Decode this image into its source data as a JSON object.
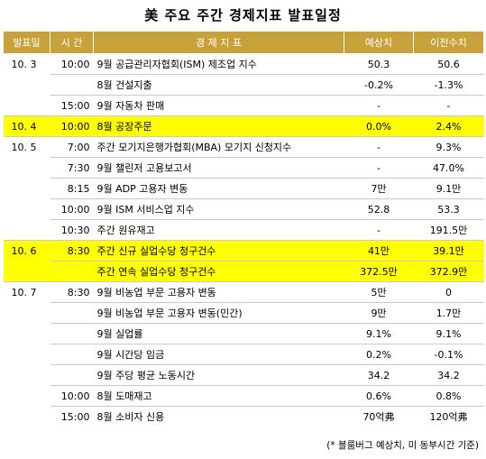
{
  "title": "美 주요 주간 경제지표 발표일정",
  "columns": [
    "발표일",
    "시 간",
    "경  제  지  표",
    "예상치",
    "이전수치"
  ],
  "rows": [
    {
      "date": "10. 3",
      "time": "10:00",
      "indicator": "9월 공급관리자협회(ISM) 제조업 지수",
      "expected": "50.3",
      "previous": "50.6",
      "highlight": false,
      "group_start": true
    },
    {
      "date": "",
      "time": "",
      "indicator": "8월 건설지출",
      "expected": "-0.2%",
      "previous": "-1.3%",
      "highlight": false,
      "group_start": false
    },
    {
      "date": "",
      "time": "15:00",
      "indicator": "9월 자동차 판매",
      "expected": "-",
      "previous": "-",
      "highlight": false,
      "group_start": false
    },
    {
      "date": "10. 4",
      "time": "10:00",
      "indicator": "8월 공장주문",
      "expected": "0.0%",
      "previous": "2.4%",
      "highlight": true,
      "group_start": true
    },
    {
      "date": "10. 5",
      "time": "7:00",
      "indicator": "주간 모기지은행가협회(MBA) 모기지 신청지수",
      "expected": "-",
      "previous": "9.3%",
      "highlight": false,
      "group_start": true
    },
    {
      "date": "",
      "time": "7:30",
      "indicator": "9월 챌린저 고용보고서",
      "expected": "-",
      "previous": "47.0%",
      "highlight": false,
      "group_start": false
    },
    {
      "date": "",
      "time": "8:15",
      "indicator": "9월 ADP 고용자 변동",
      "expected": "7만",
      "previous": "9.1만",
      "highlight": false,
      "group_start": false
    },
    {
      "date": "",
      "time": "10:00",
      "indicator": "9월 ISM 서비스업 지수",
      "expected": "52.8",
      "previous": "53.3",
      "highlight": false,
      "group_start": false
    },
    {
      "date": "",
      "time": "10:30",
      "indicator": "주간 원유재고",
      "expected": "-",
      "previous": "191.5만",
      "highlight": false,
      "group_start": false
    },
    {
      "date": "10. 6",
      "time": "8:30",
      "indicator": "주간 신규 실업수당 청구건수",
      "expected": "41만",
      "previous": "39.1만",
      "highlight": true,
      "group_start": true
    },
    {
      "date": "",
      "time": "",
      "indicator": "주간 연속 실업수당 청구건수",
      "expected": "372.5만",
      "previous": "372.9만",
      "highlight": true,
      "group_start": false
    },
    {
      "date": "10. 7",
      "time": "8:30",
      "indicator": "9월 비농업 부문 고용자 변동",
      "expected": "5만",
      "previous": "0",
      "highlight": false,
      "group_start": true
    },
    {
      "date": "",
      "time": "",
      "indicator": "9월 비농업 부문 고용자 변동(민간)",
      "expected": "9만",
      "previous": "1.7만",
      "highlight": false,
      "group_start": false
    },
    {
      "date": "",
      "time": "",
      "indicator": "9월 실업률",
      "expected": "9.1%",
      "previous": "9.1%",
      "highlight": false,
      "group_start": false
    },
    {
      "date": "",
      "time": "",
      "indicator": "9월 시간당 임금",
      "expected": "0.2%",
      "previous": "-0.1%",
      "highlight": false,
      "group_start": false
    },
    {
      "date": "",
      "time": "",
      "indicator": "9월 주당 평균 노동시간",
      "expected": "34.2",
      "previous": "34.2",
      "highlight": false,
      "group_start": false
    },
    {
      "date": "",
      "time": "10:00",
      "indicator": "8월 도매재고",
      "expected": "0.6%",
      "previous": "0.8%",
      "highlight": false,
      "group_start": false
    },
    {
      "date": "",
      "time": "15:00",
      "indicator": "8월 소비자 신용",
      "expected": "70억弗",
      "previous": "120억弗",
      "highlight": false,
      "group_start": false
    }
  ],
  "footnote": "(* 블룸버그 예상치, 미 동부시간 기준)",
  "colors": {
    "header_bg": "#c8a13a",
    "highlight": "#ffff00",
    "row_border": "#c9c9c9"
  }
}
